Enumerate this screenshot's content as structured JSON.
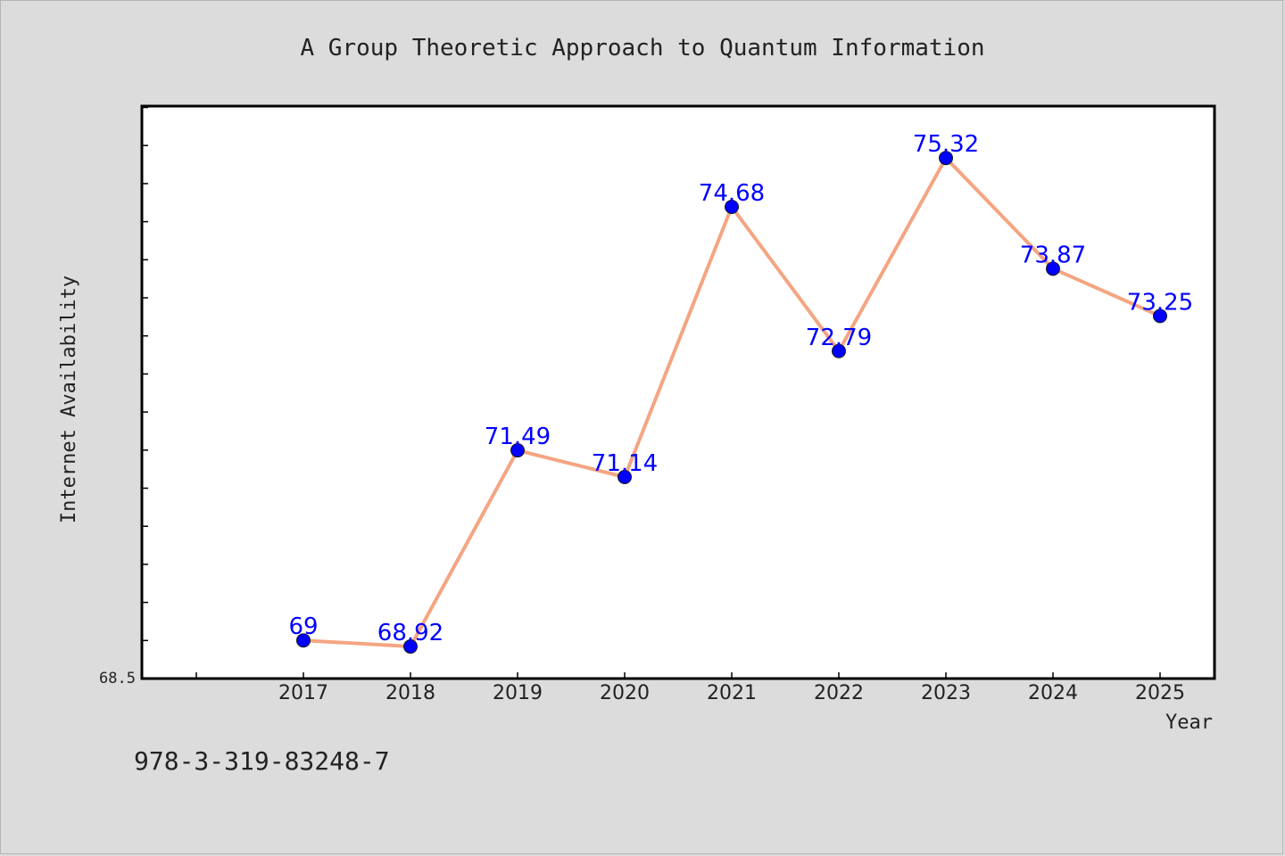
{
  "chart_data": {
    "type": "line",
    "title": "A Group Theoretic Approach to Quantum Information",
    "xlabel": "Year",
    "ylabel": "Internet Availability",
    "categories": [
      "2017",
      "2018",
      "2019",
      "2020",
      "2021",
      "2022",
      "2023",
      "2024",
      "2025"
    ],
    "series": [
      {
        "values": [
          69,
          68.92,
          71.49,
          71.14,
          74.68,
          72.79,
          75.32,
          73.87,
          73.25
        ],
        "labels": [
          "69",
          "68.92",
          "71.49",
          "71.14",
          "74.68",
          "72.79",
          "75.32",
          "73.87",
          "73.25"
        ]
      }
    ],
    "ytick_label": "68.5",
    "ylim": [
      68.5,
      76.0
    ],
    "grid": false,
    "line_color": "#f4a582",
    "marker_color": "#0000ff",
    "label_color": "#0000ff",
    "background_color": "#dcdcdc",
    "plot_background": "#ffffff"
  },
  "footer": {
    "isbn": "978-3-319-83248-7"
  }
}
